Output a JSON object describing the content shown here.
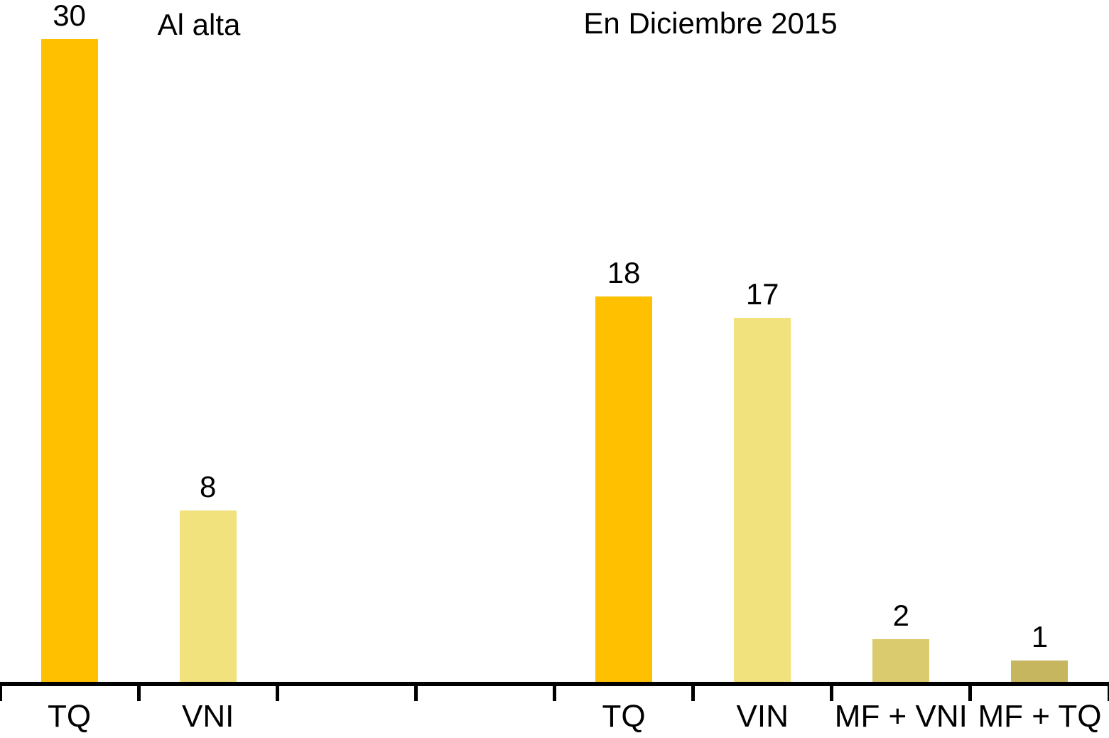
{
  "chart_data": {
    "type": "bar",
    "title": "",
    "annotations": [
      {
        "text": "Al alta"
      },
      {
        "text": "En Diciembre 2015"
      }
    ],
    "categories": [
      "TQ",
      "VNI",
      "",
      "",
      "TQ",
      "VIN",
      "MF + VNI",
      "MF + TQ"
    ],
    "bars": [
      {
        "slot": 0,
        "category": "TQ",
        "value": 30,
        "label": "30",
        "group": "Al alta",
        "color": "#FFC000"
      },
      {
        "slot": 1,
        "category": "VNI",
        "value": 8,
        "label": "8",
        "group": "Al alta",
        "color": "#F1E27E"
      },
      {
        "slot": 4,
        "category": "TQ",
        "value": 18,
        "label": "18",
        "group": "En Diciembre 2015",
        "color": "#FFC000"
      },
      {
        "slot": 5,
        "category": "VIN",
        "value": 17,
        "label": "17",
        "group": "En Diciembre 2015",
        "color": "#F1E27E"
      },
      {
        "slot": 6,
        "category": "MF + VNI",
        "value": 2,
        "label": "2",
        "group": "En Diciembre 2015",
        "color": "#DACB6E"
      },
      {
        "slot": 7,
        "category": "MF + TQ",
        "value": 1,
        "label": "1",
        "group": "En Diciembre 2015",
        "color": "#C5B65F"
      }
    ],
    "ylim": [
      0,
      30
    ],
    "yaxis_visible": false,
    "grid": false,
    "legend": "none",
    "axis_color": "#000000",
    "text_color": "#000000",
    "background_color": "#ffffff"
  }
}
